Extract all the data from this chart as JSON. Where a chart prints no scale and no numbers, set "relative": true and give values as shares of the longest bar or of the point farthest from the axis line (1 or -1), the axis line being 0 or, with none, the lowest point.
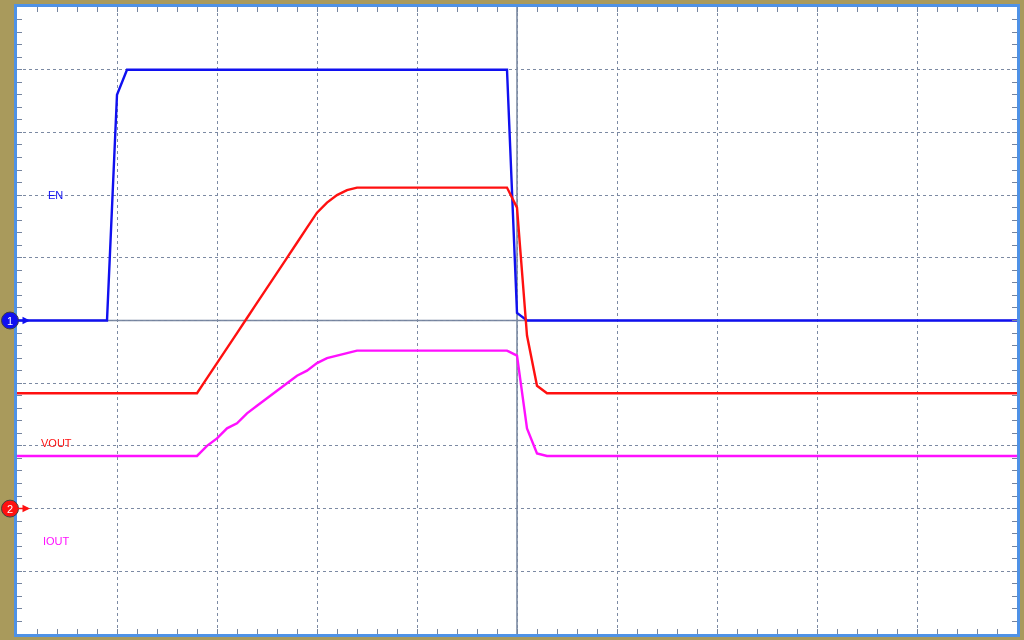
{
  "chart_data": {
    "type": "line",
    "relative": true,
    "categories": [
      null,
      null,
      null,
      null,
      null,
      null,
      null,
      null,
      null,
      null,
      null,
      null,
      null,
      null,
      null,
      null,
      null,
      null,
      null,
      null,
      null,
      null,
      null,
      null,
      null,
      null,
      null,
      null,
      null,
      null,
      null,
      null,
      null,
      null,
      null,
      null,
      null,
      null,
      null,
      null,
      null,
      null,
      null,
      null,
      null,
      null,
      null,
      null,
      null,
      null,
      null,
      null,
      null,
      null,
      null,
      null,
      null,
      null,
      null,
      null,
      null,
      null,
      null,
      null,
      null,
      null,
      null,
      null,
      null,
      null,
      null,
      null,
      null,
      null,
      null,
      null,
      null,
      null,
      null,
      null,
      null,
      null,
      null,
      null,
      null,
      null,
      null,
      null,
      null,
      null,
      null,
      null,
      null,
      null,
      null,
      null,
      null,
      null,
      null,
      null,
      null
    ],
    "series": [
      {
        "name": "EN",
        "color": "#1010f0",
        "values": [
          0,
          0,
          0,
          0,
          0,
          0,
          0,
          0,
          0,
          0,
          0.9,
          1,
          1,
          1,
          1,
          1,
          1,
          1,
          1,
          1,
          1,
          1,
          1,
          1,
          1,
          1,
          1,
          1,
          1,
          1,
          1,
          1,
          1,
          1,
          1,
          1,
          1,
          1,
          1,
          1,
          1,
          1,
          1,
          1,
          1,
          1,
          1,
          1,
          1,
          1,
          0.03,
          0,
          0,
          0,
          0,
          0,
          0,
          0,
          0,
          0,
          0,
          0,
          0,
          0,
          0,
          0,
          0,
          0,
          0,
          0,
          0,
          0,
          0,
          0,
          0,
          0,
          0,
          0,
          0,
          0,
          0,
          0,
          0,
          0,
          0,
          0,
          0,
          0,
          0,
          0,
          0,
          0,
          0,
          0,
          0,
          0,
          0,
          0,
          0,
          0,
          0
        ]
      },
      {
        "name": "VOUT",
        "color": "#ff1010",
        "values": [
          -0.29,
          -0.29,
          -0.29,
          -0.29,
          -0.29,
          -0.29,
          -0.29,
          -0.29,
          -0.29,
          -0.29,
          -0.29,
          -0.29,
          -0.29,
          -0.29,
          -0.29,
          -0.29,
          -0.29,
          -0.29,
          -0.29,
          -0.23,
          -0.17,
          -0.11,
          -0.05,
          0.01,
          0.07,
          0.13,
          0.19,
          0.25,
          0.31,
          0.37,
          0.43,
          0.47,
          0.5,
          0.52,
          0.53,
          0.53,
          0.53,
          0.53,
          0.53,
          0.53,
          0.53,
          0.53,
          0.53,
          0.53,
          0.53,
          0.53,
          0.53,
          0.53,
          0.53,
          0.53,
          0.45,
          -0.06,
          -0.26,
          -0.29,
          -0.29,
          -0.29,
          -0.29,
          -0.29,
          -0.29,
          -0.29,
          -0.29,
          -0.29,
          -0.29,
          -0.29,
          -0.29,
          -0.29,
          -0.29,
          -0.29,
          -0.29,
          -0.29,
          -0.29,
          -0.29,
          -0.29,
          -0.29,
          -0.29,
          -0.29,
          -0.29,
          -0.29,
          -0.29,
          -0.29,
          -0.29,
          -0.29,
          -0.29,
          -0.29,
          -0.29,
          -0.29,
          -0.29,
          -0.29,
          -0.29,
          -0.29,
          -0.29,
          -0.29,
          -0.29,
          -0.29,
          -0.29,
          -0.29,
          -0.29,
          -0.29,
          -0.29,
          -0.29,
          -0.29
        ]
      },
      {
        "name": "IOUT",
        "color": "#ff10ff",
        "values": [
          -0.54,
          -0.54,
          -0.54,
          -0.54,
          -0.54,
          -0.54,
          -0.54,
          -0.54,
          -0.54,
          -0.54,
          -0.54,
          -0.54,
          -0.54,
          -0.54,
          -0.54,
          -0.54,
          -0.54,
          -0.54,
          -0.54,
          -0.5,
          -0.47,
          -0.43,
          -0.41,
          -0.37,
          -0.34,
          -0.31,
          -0.28,
          -0.25,
          -0.22,
          -0.2,
          -0.17,
          -0.15,
          -0.14,
          -0.13,
          -0.12,
          -0.12,
          -0.12,
          -0.12,
          -0.12,
          -0.12,
          -0.12,
          -0.12,
          -0.12,
          -0.12,
          -0.12,
          -0.12,
          -0.12,
          -0.12,
          -0.12,
          -0.12,
          -0.14,
          -0.43,
          -0.53,
          -0.54,
          -0.54,
          -0.54,
          -0.54,
          -0.54,
          -0.54,
          -0.54,
          -0.54,
          -0.54,
          -0.54,
          -0.54,
          -0.54,
          -0.54,
          -0.54,
          -0.54,
          -0.54,
          -0.54,
          -0.54,
          -0.54,
          -0.54,
          -0.54,
          -0.54,
          -0.54,
          -0.54,
          -0.54,
          -0.54,
          -0.54,
          -0.54,
          -0.54,
          -0.54,
          -0.54,
          -0.54,
          -0.54,
          -0.54,
          -0.54,
          -0.54,
          -0.54,
          -0.54,
          -0.54,
          -0.54,
          -0.54,
          -0.54,
          -0.54,
          -0.54,
          -0.54,
          -0.54,
          -0.54,
          -0.54
        ]
      }
    ],
    "annotations": [
      {
        "text": "1",
        "y": 0
      },
      "2"
    ],
    "ref_lines": [
      {
        "axis": "y",
        "value": 0,
        "color": "#75849e"
      }
    ],
    "grid": true,
    "legend": false,
    "tick_labels": false
  }
}
